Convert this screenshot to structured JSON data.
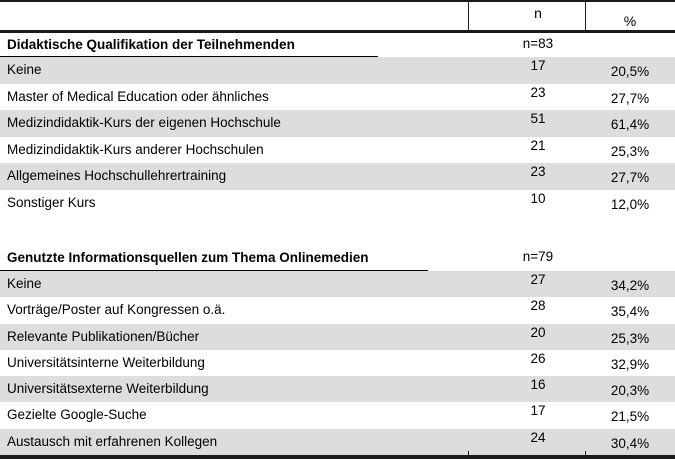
{
  "colors": {
    "stripe": "#dddddd",
    "border": "#000000",
    "text": "#000000",
    "background": "#ffffff"
  },
  "table": {
    "columns": {
      "n": "n",
      "pct": "%"
    },
    "sections": [
      {
        "title": "Didaktische Qualifikation der Teilnehmenden",
        "n_total": "n=83",
        "rows": [
          {
            "label": "Keine",
            "n": "17",
            "pct": "20,5%"
          },
          {
            "label": "Master of Medical Education oder ähnliches",
            "n": "23",
            "pct": "27,7%"
          },
          {
            "label": "Medizindidaktik-Kurs der eigenen Hochschule",
            "n": "51",
            "pct": "61,4%"
          },
          {
            "label": "Medizindidaktik-Kurs anderer Hochschulen",
            "n": "21",
            "pct": "25,3%"
          },
          {
            "label": "Allgemeines Hochschullehrertraining",
            "n": "23",
            "pct": "27,7%"
          },
          {
            "label": "Sonstiger Kurs",
            "n": "10",
            "pct": "12,0%"
          }
        ]
      },
      {
        "title": "Genutzte Informationsquellen zum Thema Onlinemedien",
        "n_total": "n=79",
        "rows": [
          {
            "label": "Keine",
            "n": "27",
            "pct": "34,2%"
          },
          {
            "label": "Vorträge/Poster auf Kongressen o.ä.",
            "n": "28",
            "pct": "35,4%"
          },
          {
            "label": "Relevante Publikationen/Bücher",
            "n": "20",
            "pct": "25,3%"
          },
          {
            "label": "Universitätsinterne Weiterbildung",
            "n": "26",
            "pct": "32,9%"
          },
          {
            "label": "Universitätsexterne Weiterbildung",
            "n": "16",
            "pct": "20,3%"
          },
          {
            "label": "Gezielte Google-Suche",
            "n": "17",
            "pct": "21,5%"
          },
          {
            "label": "Austausch mit erfahrenen Kollegen",
            "n": "24",
            "pct": "30,4%"
          }
        ]
      }
    ]
  }
}
